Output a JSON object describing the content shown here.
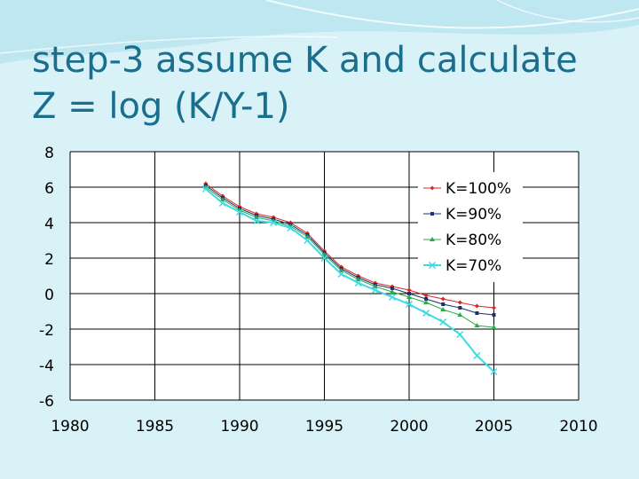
{
  "slide": {
    "title_line1": "step-3 assume K and calculate",
    "title_line2": "Z = log (K/Y-1)"
  },
  "colors": {
    "background": "#d9f2f8",
    "title": "#1a6f8c",
    "plot_area": "#ffffff",
    "grid": "#000000"
  },
  "chart_data": {
    "type": "line",
    "title": "",
    "xlabel": "",
    "ylabel": "",
    "xlim": [
      1980,
      2010
    ],
    "ylim": [
      -6,
      8
    ],
    "xticks": [
      1980,
      1985,
      1990,
      1995,
      2000,
      2005,
      2010
    ],
    "yticks": [
      8,
      6,
      4,
      2,
      0,
      -2,
      -4,
      -6
    ],
    "grid": true,
    "legend_position": "top-right",
    "x": [
      1988,
      1989,
      1990,
      1991,
      1992,
      1993,
      1994,
      1995,
      1996,
      1997,
      1998,
      1999,
      2000,
      2001,
      2002,
      2003,
      2004,
      2005
    ],
    "series": [
      {
        "name": "K=100%",
        "color": "#d9252a",
        "marker": "diamond",
        "values": [
          6.2,
          5.5,
          4.9,
          4.5,
          4.3,
          4.0,
          3.4,
          2.4,
          1.5,
          1.0,
          0.6,
          0.4,
          0.2,
          -0.1,
          -0.3,
          -0.5,
          -0.7,
          -0.8
        ]
      },
      {
        "name": "K=90%",
        "color": "#1f2f6b",
        "marker": "square",
        "values": [
          6.1,
          5.4,
          4.8,
          4.4,
          4.2,
          3.9,
          3.3,
          2.3,
          1.4,
          0.9,
          0.5,
          0.3,
          0.0,
          -0.3,
          -0.6,
          -0.8,
          -1.1,
          -1.2
        ]
      },
      {
        "name": "K=80%",
        "color": "#2da84a",
        "marker": "triangle",
        "values": [
          6.0,
          5.3,
          4.7,
          4.3,
          4.1,
          3.8,
          3.2,
          2.2,
          1.3,
          0.8,
          0.4,
          0.1,
          -0.2,
          -0.5,
          -0.9,
          -1.2,
          -1.8,
          -1.9
        ]
      },
      {
        "name": "K=70%",
        "color": "#3fd9e2",
        "marker": "x",
        "values": [
          5.9,
          5.1,
          4.6,
          4.1,
          4.0,
          3.7,
          3.0,
          2.0,
          1.1,
          0.6,
          0.2,
          -0.2,
          -0.6,
          -1.1,
          -1.6,
          -2.3,
          -3.5,
          -4.4
        ]
      }
    ]
  }
}
